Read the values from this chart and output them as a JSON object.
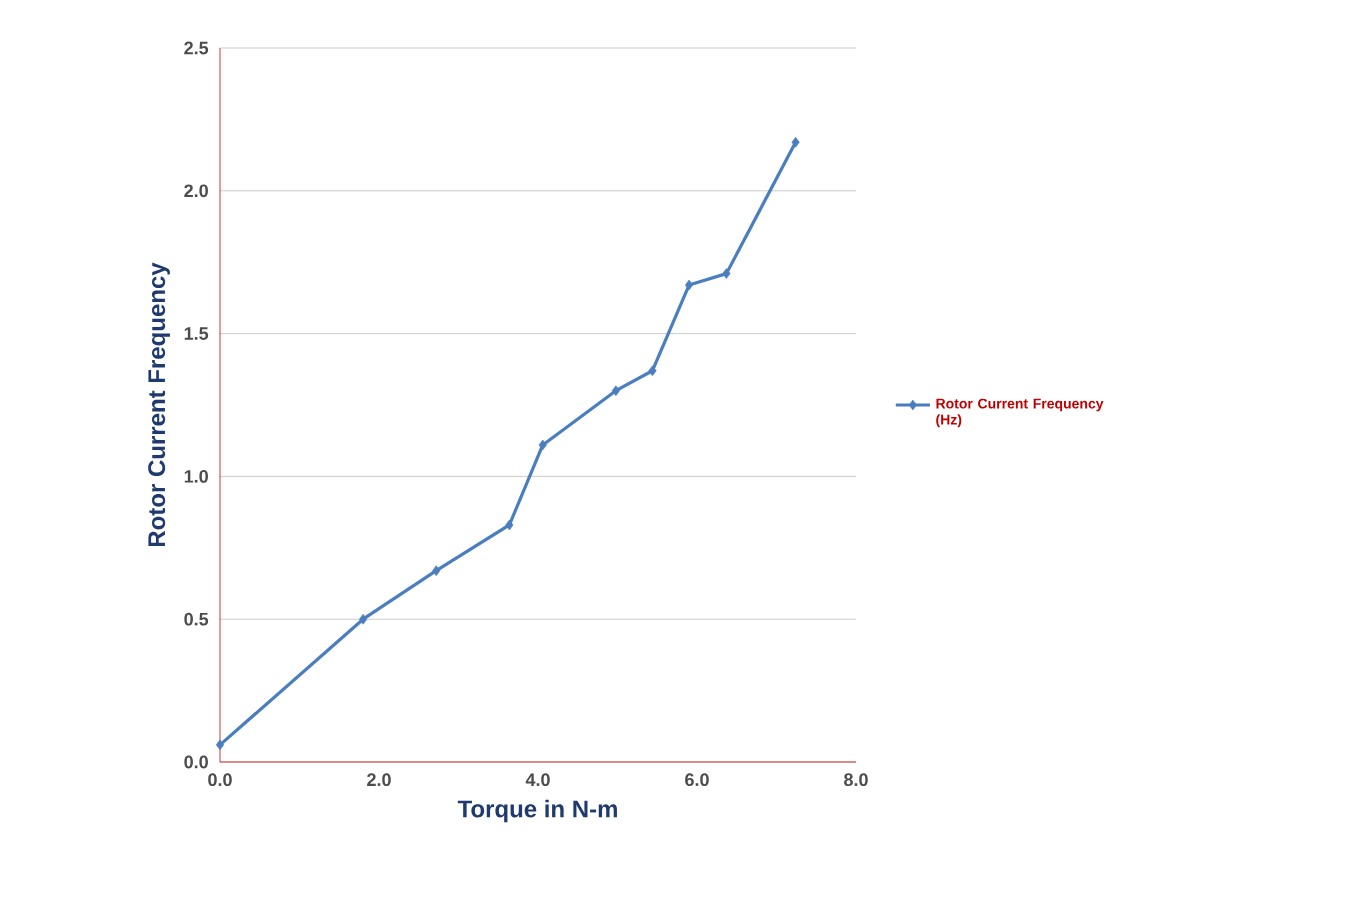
{
  "chart_data": {
    "type": "line",
    "xlabel": "Torque in N-m",
    "ylabel": "Rotor Current  Frequency",
    "x": [
      0.0,
      1.8,
      2.72,
      3.64,
      4.06,
      4.98,
      5.44,
      5.9,
      6.37,
      7.24
    ],
    "series": [
      {
        "name": "Rotor Current Frequency (Hz)",
        "color": "#4a7ebf",
        "values": [
          0.06,
          0.5,
          0.67,
          0.83,
          1.11,
          1.3,
          1.37,
          1.67,
          1.71,
          2.17
        ]
      }
    ],
    "xlim": [
      0,
      8
    ],
    "ylim": [
      0,
      2.5
    ],
    "xticks": [
      {
        "value": 0,
        "label": "0.0"
      },
      {
        "value": 2,
        "label": "2.0"
      },
      {
        "value": 4,
        "label": "4.0"
      },
      {
        "value": 6,
        "label": "6.0"
      },
      {
        "value": 8,
        "label": "8.0"
      }
    ],
    "yticks": [
      {
        "value": 0,
        "label": "0.0"
      },
      {
        "value": 0.5,
        "label": "0.5"
      },
      {
        "value": 1,
        "label": "1.0"
      },
      {
        "value": 1.5,
        "label": "1.5"
      },
      {
        "value": 2,
        "label": "2.0"
      },
      {
        "value": 2.5,
        "label": "2.5"
      }
    ],
    "grid": "y",
    "legend": "right",
    "marker": "diamond",
    "line_style": "solid"
  }
}
